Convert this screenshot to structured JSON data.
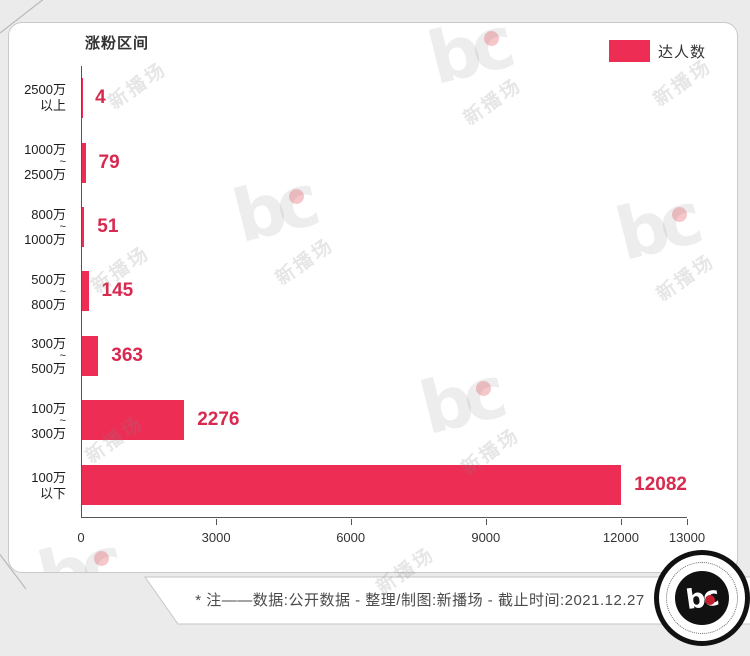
{
  "colors": {
    "bar": "#EE2D55",
    "value_label": "#D8294F",
    "axis": "#555555",
    "background": "#ebebeb",
    "card": "#ffffff"
  },
  "y_axis_title": "涨粉区间",
  "legend": {
    "label": "达人数"
  },
  "chart_data": {
    "type": "bar",
    "orientation": "horizontal",
    "title": "涨粉区间",
    "legend": [
      "达人数"
    ],
    "legend_position": "top-right",
    "grid": false,
    "categories": [
      "2500万以上",
      "1000万~2500万",
      "800万~1000万",
      "500万~800万",
      "300万~500万",
      "100万~300万",
      "100万以下"
    ],
    "category_label_lines": [
      [
        "2500万",
        "以上"
      ],
      [
        "1000万",
        "~",
        "2500万"
      ],
      [
        "800万",
        "~",
        "1000万"
      ],
      [
        "500万",
        "~",
        "800万"
      ],
      [
        "300万",
        "~",
        "500万"
      ],
      [
        "100万",
        "~",
        "300万"
      ],
      [
        "100万",
        "以下"
      ]
    ],
    "series": [
      {
        "name": "达人数",
        "values": [
          4,
          79,
          51,
          145,
          363,
          2276,
          12082
        ]
      }
    ],
    "xlim": [
      0,
      13000
    ],
    "x_ticks": [
      0,
      3000,
      6000,
      9000,
      12000,
      13000
    ],
    "x_tick_positions_pct": [
      0,
      22.3,
      44.5,
      66.8,
      89.1,
      100
    ],
    "axis_scale_max": 13470
  },
  "watermark": {
    "glyph": "bc",
    "text": "新播场"
  },
  "footer": {
    "note": "* 注——数据:公开数据  -  整理/制图:新播场  -  截止时间:2021.12.27"
  },
  "logo": {
    "text": "bc"
  }
}
